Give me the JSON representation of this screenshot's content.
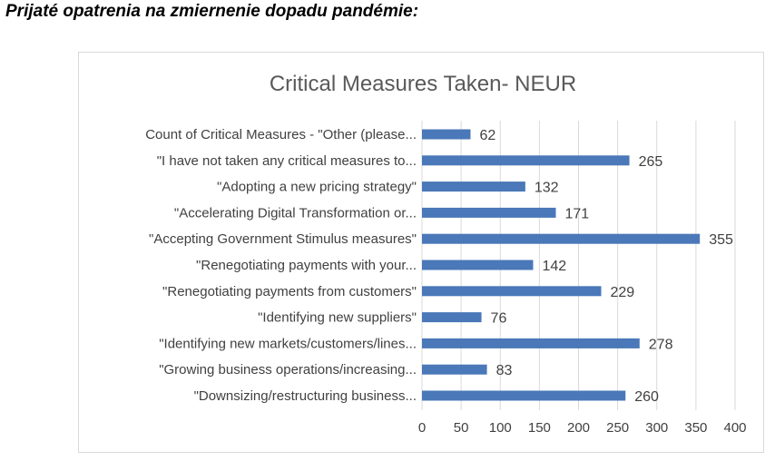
{
  "heading": "Prijaté opatrenia na zmiernenie dopadu pandémie:",
  "chart_data": {
    "type": "bar",
    "orientation": "horizontal",
    "title": "Critical Measures Taken- NEUR",
    "categories": [
      "Count of Critical Measures - \"Other (please...",
      "\"I have not taken any critical measures to...",
      "\"Adopting a new pricing strategy\"",
      "\"Accelerating Digital Transformation or...",
      "\"Accepting Government Stimulus measures\"",
      "\"Renegotiating payments with your...",
      "\"Renegotiating payments from customers\"",
      "\"Identifying new suppliers\"",
      "\"Identifying new markets/customers/lines...",
      "\"Growing business operations/increasing...",
      "\"Downsizing/restructuring business..."
    ],
    "values": [
      62,
      265,
      132,
      171,
      355,
      142,
      229,
      76,
      278,
      83,
      260
    ],
    "xlim": [
      0,
      400
    ],
    "xticks": [
      0,
      50,
      100,
      150,
      200,
      250,
      300,
      350,
      400
    ],
    "grid": "vertical",
    "data_labels": true,
    "legend": "none",
    "bar_color": "#4a78b8",
    "gridline_color": "#d9d9d9",
    "text_color": "#404040",
    "title_color": "#595959"
  }
}
